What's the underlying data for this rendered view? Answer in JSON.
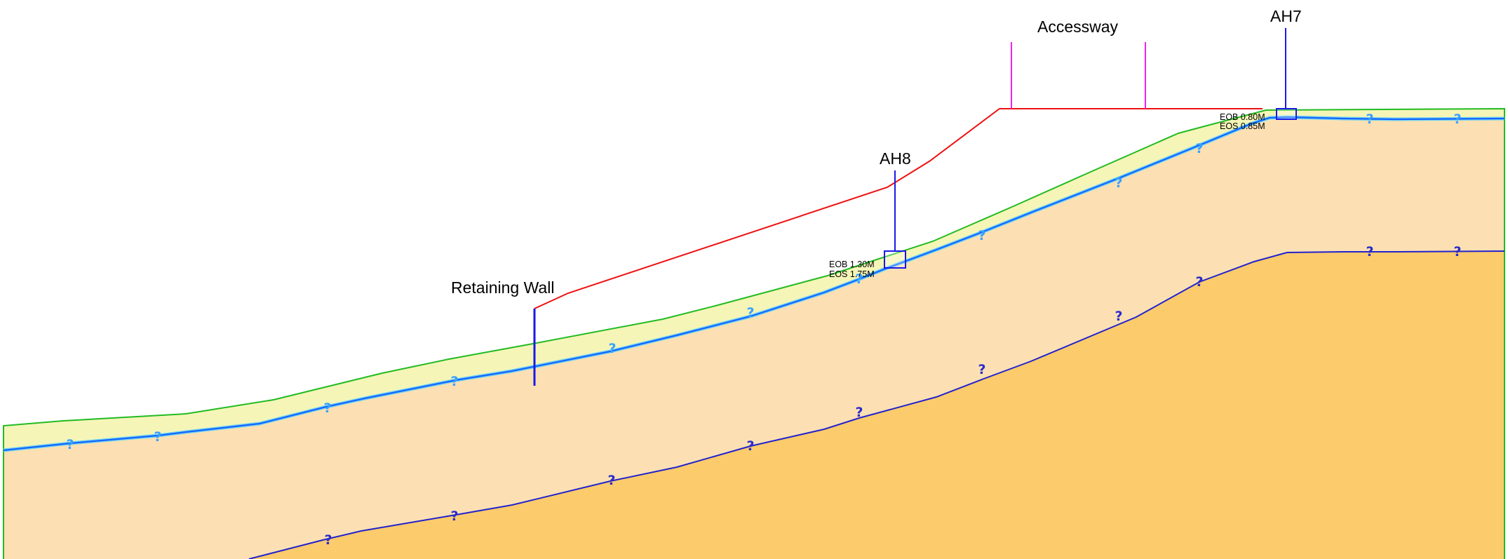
{
  "labels": {
    "accessway": "Accessway",
    "ah7": "AH7",
    "ah8": "AH8",
    "retaining_wall": "Retaining Wall",
    "ah7_eob": "EOB 0.80M",
    "ah7_eos": "EOS 0.85M",
    "ah8_eob": "EOB 1.30M",
    "ah8_eos": "EOS 1.75M"
  },
  "uncertain_marker": "?",
  "colors": {
    "topsoil_fill": "#f5f5b8",
    "clay_fill": "#fce0b3",
    "deep_fill": "#fccb6c",
    "ground_line": "#22bb22",
    "topsoil_base": "#1565ff",
    "topsoil_base_glow": "#6fd3f0",
    "deep_boundary": "#2222cc",
    "marker_light": "#3aa0ff",
    "marker_dark": "#2a2acc",
    "proposed_profile": "#ee1111",
    "accessway_marks": "#ee22ee",
    "borehole": "#1a1ae6"
  }
}
